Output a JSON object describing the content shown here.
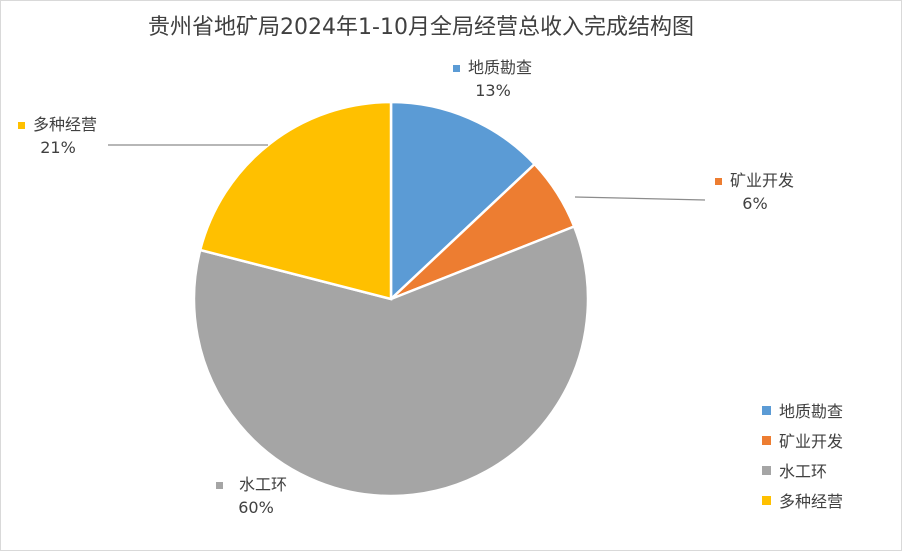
{
  "chart_data": {
    "type": "pie",
    "title": "贵州省地矿局2024年1-10月全局经营总收入完成结构图",
    "categories": [
      "地质勘查",
      "矿业开发",
      "水工环",
      "多种经营"
    ],
    "values": [
      13,
      6,
      60,
      21
    ],
    "value_labels": [
      "13%",
      "6%",
      "60%",
      "21%"
    ],
    "colors": [
      "#5b9bd5",
      "#ed7d31",
      "#a5a5a5",
      "#ffc000"
    ],
    "legend_position": "right-bottom"
  }
}
